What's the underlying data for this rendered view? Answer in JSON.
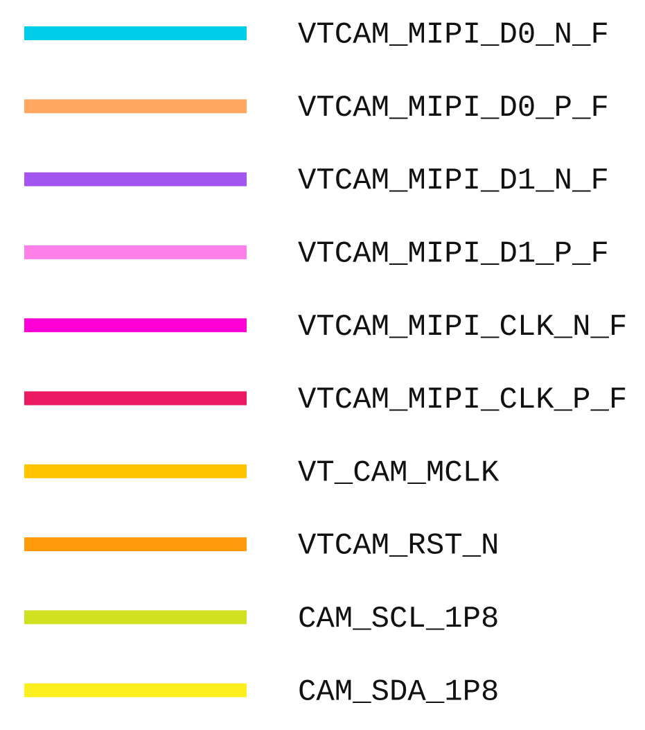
{
  "legend": {
    "items": [
      {
        "label": "VTCAM_MIPI_D0_N_F",
        "color": "#00cdea"
      },
      {
        "label": "VTCAM_MIPI_D0_P_F",
        "color": "#ffa660"
      },
      {
        "label": "VTCAM_MIPI_D1_N_F",
        "color": "#a455ef"
      },
      {
        "label": "VTCAM_MIPI_D1_P_F",
        "color": "#ff7fe9"
      },
      {
        "label": "VTCAM_MIPI_CLK_N_F",
        "color": "#ff00d6"
      },
      {
        "label": "VTCAM_MIPI_CLK_P_F",
        "color": "#ec1a63"
      },
      {
        "label": "VT_CAM_MCLK",
        "color": "#ffc400"
      },
      {
        "label": "VTCAM_RST_N",
        "color": "#ff9a0b"
      },
      {
        "label": "CAM_SCL_1P8",
        "color": "#cfe120"
      },
      {
        "label": "CAM_SDA_1P8",
        "color": "#fdee1f"
      }
    ]
  }
}
